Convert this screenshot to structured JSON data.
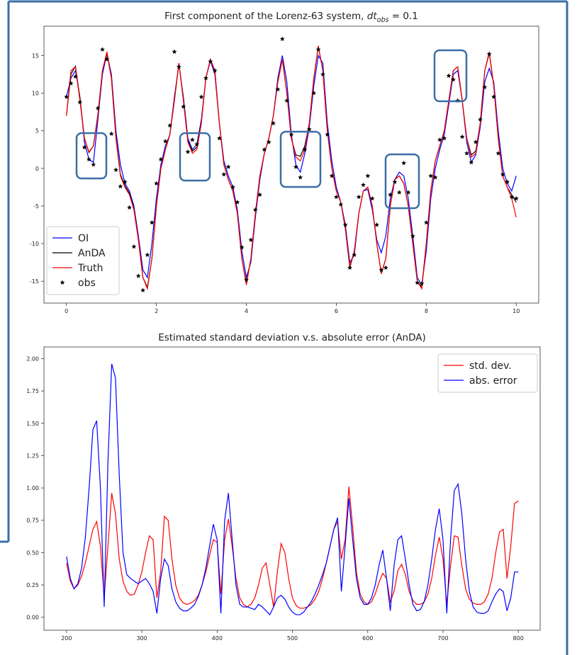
{
  "chart_data": [
    {
      "type": "line",
      "title": {
        "text": "First component of the Lorenz-63 system, ",
        "symbol": "dt",
        "subscript": "obs",
        "suffix": " = 0.1"
      },
      "x": [
        0,
        0.1,
        0.2,
        0.3,
        0.4,
        0.5,
        0.6,
        0.7,
        0.8,
        0.9,
        1,
        1.1,
        1.2,
        1.3,
        1.4,
        1.5,
        1.6,
        1.7,
        1.8,
        1.9,
        2,
        2.1,
        2.2,
        2.3,
        2.4,
        2.5,
        2.6,
        2.7,
        2.8,
        2.9,
        3,
        3.1,
        3.2,
        3.3,
        3.4,
        3.5,
        3.6,
        3.7,
        3.8,
        3.9,
        4,
        4.1,
        4.2,
        4.3,
        4.4,
        4.5,
        4.6,
        4.7,
        4.8,
        4.9,
        5,
        5.1,
        5.2,
        5.3,
        5.4,
        5.5,
        5.6,
        5.7,
        5.8,
        5.9,
        6,
        6.1,
        6.2,
        6.3,
        6.4,
        6.5,
        6.6,
        6.7,
        6.8,
        6.9,
        7,
        7.1,
        7.2,
        7.3,
        7.4,
        7.5,
        7.6,
        7.7,
        7.8,
        7.9,
        8,
        8.1,
        8.2,
        8.3,
        8.4,
        8.5,
        8.6,
        8.7,
        8.8,
        8.9,
        9,
        9.1,
        9.2,
        9.3,
        9.4,
        9.5,
        9.6,
        9.7,
        9.8,
        9.9,
        10
      ],
      "series": [
        {
          "name": "OI",
          "color": "#0000ff",
          "values": [
            9.5,
            12,
            13,
            9.5,
            3.5,
            1.2,
            0.8,
            6.5,
            12.5,
            15.3,
            12.5,
            5,
            0.5,
            -2,
            -3,
            -5,
            -9,
            -13.5,
            -14.5,
            -10,
            -4,
            0.5,
            3,
            4.5,
            9.5,
            13.8,
            9.5,
            4,
            2.5,
            3.2,
            6.5,
            12,
            14.3,
            12.5,
            6,
            1,
            -1,
            -2.5,
            -5.5,
            -11,
            -14.5,
            -12.5,
            -6.5,
            -1.5,
            2,
            4,
            7,
            12,
            15,
            11.5,
            4.5,
            0.5,
            -0.5,
            2,
            5.5,
            11,
            15,
            14,
            6,
            1,
            -2.5,
            -4.5,
            -7.5,
            -12.5,
            -11.5,
            -6,
            -3,
            -2.8,
            -5.5,
            -9.5,
            -11.2,
            -9,
            -4,
            -1.5,
            -0.5,
            -1,
            -4,
            -9,
            -14.5,
            -15.5,
            -11,
            -4,
            0,
            2.5,
            4.5,
            8.5,
            12.5,
            13,
            9,
            3.5,
            0.8,
            1.8,
            5.5,
            11.5,
            13.3,
            11.5,
            5,
            0,
            -2,
            -3,
            -1
          ]
        },
        {
          "name": "AnDA",
          "color": "#000000",
          "values": [
            7,
            12.5,
            13.6,
            9.3,
            4,
            2.1,
            3,
            7.2,
            13,
            15.3,
            12,
            4.2,
            -0.8,
            -2.3,
            -3.3,
            -5.3,
            -9.5,
            -14.5,
            -15.8,
            -12,
            -5,
            0,
            2.5,
            4.5,
            9,
            14,
            9.2,
            3.7,
            2.3,
            2.8,
            6.2,
            12,
            14.5,
            13,
            6,
            0.5,
            -1.5,
            -3,
            -6,
            -12,
            -15.3,
            -12,
            -6,
            -1,
            2,
            4,
            7,
            11.5,
            14.5,
            10,
            4,
            1.8,
            1.6,
            3,
            6,
            12,
            16.2,
            13,
            5,
            0,
            -3,
            -4.5,
            -8,
            -13.2,
            -11,
            -6,
            -3,
            -2.5,
            -5,
            -10,
            -14,
            -12,
            -5,
            -1.5,
            -1,
            -2,
            -5,
            -10,
            -15,
            -15.8,
            -10,
            -3,
            1,
            3,
            5,
            9,
            13,
            13.5,
            9,
            4,
            1.8,
            2.3,
            6,
            13,
            15.3,
            11,
            4,
            -1,
            -2.5,
            -3.5,
            -4.5
          ]
        },
        {
          "name": "Truth",
          "color": "#ff0000",
          "values": [
            7,
            13,
            13.5,
            9,
            4,
            2.2,
            3,
            7,
            13,
            15.5,
            12,
            4,
            -1,
            -2.5,
            -3.5,
            -5.5,
            -9.5,
            -14.5,
            -16,
            -12,
            -5,
            0,
            2.5,
            4.5,
            9,
            14,
            9,
            3.5,
            2,
            2.5,
            6,
            12,
            14.5,
            13,
            6,
            0.5,
            -1.5,
            -3,
            -6,
            -12,
            -15.5,
            -12,
            -6,
            -1,
            2,
            4,
            7,
            11.5,
            14.5,
            10,
            4,
            1.5,
            1,
            2.5,
            6,
            12,
            16.3,
            13,
            5,
            0,
            -3,
            -4.5,
            -8,
            -13,
            -11,
            -6,
            -3,
            -2.5,
            -5,
            -10,
            -14,
            -12,
            -5,
            -1.5,
            -1,
            -2,
            -5,
            -10,
            -15,
            -16,
            -10,
            -3,
            1,
            3,
            5,
            9,
            13,
            13.5,
            9,
            4,
            1.5,
            2,
            6,
            13,
            15.5,
            11,
            4,
            -1,
            -2.5,
            -4,
            -6.5
          ]
        },
        {
          "name": "obs",
          "color": "#000000",
          "kind": "scatter",
          "values": [
            9.5,
            11.3,
            12.2,
            8.8,
            2.8,
            1.2,
            0.5,
            8,
            15.8,
            14.5,
            4.6,
            -0.2,
            -2.4,
            -1.8,
            -5.2,
            -10.4,
            -14.3,
            -16.2,
            -11.5,
            -7.2,
            -2,
            1.2,
            3.6,
            5.7,
            15.5,
            13.5,
            8.2,
            2.2,
            3.8,
            3.2,
            9.5,
            12,
            14.2,
            13,
            4,
            -0.8,
            0.2,
            -2.5,
            -4.5,
            -10.5,
            -14.8,
            -9.5,
            -5.5,
            -3.5,
            2.5,
            3.5,
            6,
            10.5,
            17.2,
            9,
            4.5,
            0.2,
            -1.2,
            2.5,
            5.2,
            10,
            15.8,
            12.5,
            4.5,
            -1,
            -3.8,
            -4.8,
            -7.5,
            -13.2,
            -11.5,
            -3.8,
            -2.2,
            -1,
            -4,
            -7.5,
            -13.5,
            -13.2,
            -3.5,
            -1.8,
            -3.2,
            0.7,
            -3.2,
            -9,
            -15.2,
            -15.3,
            -7.2,
            -1,
            -1.2,
            3.8,
            4,
            12.3,
            11.8,
            9,
            4.2,
            2,
            0.8,
            3.5,
            6.5,
            10.8,
            15.2,
            9.5,
            2,
            -0.8,
            -1.8,
            -3.8,
            -4
          ]
        }
      ],
      "xlim": [
        -0.5,
        10.5
      ],
      "xticks": [
        0,
        2,
        4,
        6,
        8,
        10
      ],
      "ylim": [
        -17.9,
        18.9
      ],
      "yticks": [
        -15,
        -10,
        -5,
        0,
        5,
        10,
        15
      ],
      "legend": "lower left"
    },
    {
      "type": "line",
      "title": "Estimated standard deviation v.s. absolute error (AnDA)",
      "x": [
        200,
        205,
        210,
        215,
        220,
        225,
        230,
        235,
        240,
        245,
        250,
        255,
        260,
        265,
        270,
        275,
        280,
        285,
        290,
        295,
        300,
        305,
        310,
        315,
        320,
        325,
        330,
        335,
        340,
        345,
        350,
        355,
        360,
        365,
        370,
        375,
        380,
        385,
        390,
        395,
        400,
        405,
        410,
        415,
        420,
        425,
        430,
        435,
        440,
        445,
        450,
        455,
        460,
        465,
        470,
        475,
        480,
        485,
        490,
        495,
        500,
        505,
        510,
        515,
        520,
        525,
        530,
        535,
        540,
        545,
        550,
        555,
        560,
        565,
        570,
        575,
        580,
        585,
        590,
        595,
        600,
        605,
        610,
        615,
        620,
        625,
        630,
        635,
        640,
        645,
        650,
        655,
        660,
        665,
        670,
        675,
        680,
        685,
        690,
        695,
        700,
        705,
        710,
        715,
        720,
        725,
        730,
        735,
        740,
        745,
        750,
        755,
        760,
        765,
        770,
        775,
        780,
        785,
        790,
        795,
        800
      ],
      "series": [
        {
          "name": "std. dev.",
          "color": "#ff0000",
          "values": [
            0.42,
            0.28,
            0.22,
            0.25,
            0.32,
            0.42,
            0.55,
            0.68,
            0.74,
            0.55,
            0.15,
            0.55,
            0.96,
            0.8,
            0.45,
            0.28,
            0.2,
            0.17,
            0.18,
            0.25,
            0.35,
            0.5,
            0.63,
            0.6,
            0.15,
            0.35,
            0.78,
            0.75,
            0.45,
            0.25,
            0.15,
            0.11,
            0.1,
            0.11,
            0.13,
            0.17,
            0.25,
            0.35,
            0.48,
            0.6,
            0.58,
            0.18,
            0.6,
            0.76,
            0.55,
            0.3,
            0.15,
            0.1,
            0.08,
            0.1,
            0.15,
            0.25,
            0.38,
            0.42,
            0.25,
            0.08,
            0.35,
            0.57,
            0.5,
            0.3,
            0.15,
            0.09,
            0.07,
            0.07,
            0.08,
            0.1,
            0.14,
            0.2,
            0.3,
            0.42,
            0.55,
            0.68,
            0.74,
            0.45,
            0.6,
            1.01,
            0.7,
            0.35,
            0.18,
            0.12,
            0.1,
            0.12,
            0.18,
            0.27,
            0.34,
            0.3,
            0.12,
            0.2,
            0.36,
            0.41,
            0.33,
            0.2,
            0.13,
            0.1,
            0.1,
            0.12,
            0.18,
            0.3,
            0.48,
            0.62,
            0.45,
            0.1,
            0.4,
            0.63,
            0.62,
            0.4,
            0.22,
            0.14,
            0.11,
            0.1,
            0.1,
            0.12,
            0.18,
            0.3,
            0.5,
            0.66,
            0.68,
            0.3,
            0.55,
            0.88,
            0.9
          ]
        },
        {
          "name": "abs. error",
          "color": "#0000ff",
          "values": [
            0.47,
            0.3,
            0.22,
            0.26,
            0.38,
            0.62,
            1.0,
            1.45,
            1.52,
            1.0,
            0.08,
            1.2,
            1.96,
            1.85,
            1.1,
            0.5,
            0.33,
            0.3,
            0.28,
            0.26,
            0.28,
            0.3,
            0.26,
            0.2,
            0.03,
            0.3,
            0.45,
            0.4,
            0.22,
            0.12,
            0.07,
            0.05,
            0.05,
            0.07,
            0.1,
            0.16,
            0.25,
            0.38,
            0.55,
            0.72,
            0.6,
            0.03,
            0.75,
            0.96,
            0.6,
            0.25,
            0.1,
            0.08,
            0.08,
            0.07,
            0.06,
            0.1,
            0.08,
            0.05,
            0.02,
            0.08,
            0.15,
            0.17,
            0.14,
            0.08,
            0.04,
            0.02,
            0.02,
            0.04,
            0.08,
            0.12,
            0.18,
            0.25,
            0.33,
            0.42,
            0.55,
            0.68,
            0.77,
            0.2,
            0.55,
            0.92,
            0.6,
            0.3,
            0.15,
            0.1,
            0.1,
            0.15,
            0.25,
            0.4,
            0.52,
            0.3,
            0.05,
            0.4,
            0.6,
            0.63,
            0.45,
            0.25,
            0.1,
            0.05,
            0.06,
            0.12,
            0.25,
            0.45,
            0.68,
            0.84,
            0.6,
            0.03,
            0.6,
            0.98,
            1.03,
            0.8,
            0.45,
            0.2,
            0.08,
            0.04,
            0.03,
            0.03,
            0.05,
            0.12,
            0.18,
            0.22,
            0.2,
            0.05,
            0.15,
            0.35,
            0.35
          ]
        }
      ],
      "xlim": [
        170,
        829
      ],
      "xticks": [
        200,
        300,
        400,
        500,
        600,
        700,
        800
      ],
      "ylim": [
        -0.1,
        2.09
      ],
      "yticks": [
        {
          "value": 0,
          "label": "0.00"
        },
        {
          "value": 0.25,
          "label": "0.25"
        },
        {
          "value": 0.5,
          "label": "0.50"
        },
        {
          "value": 0.75,
          "label": "0.75"
        },
        {
          "value": 1,
          "label": "1.00"
        },
        {
          "value": 1.25,
          "label": "1.25"
        },
        {
          "value": 1.5,
          "label": "1.50"
        },
        {
          "value": 1.75,
          "label": "1.75"
        },
        {
          "value": 2,
          "label": "2.00"
        }
      ],
      "legend": "upper right"
    }
  ]
}
